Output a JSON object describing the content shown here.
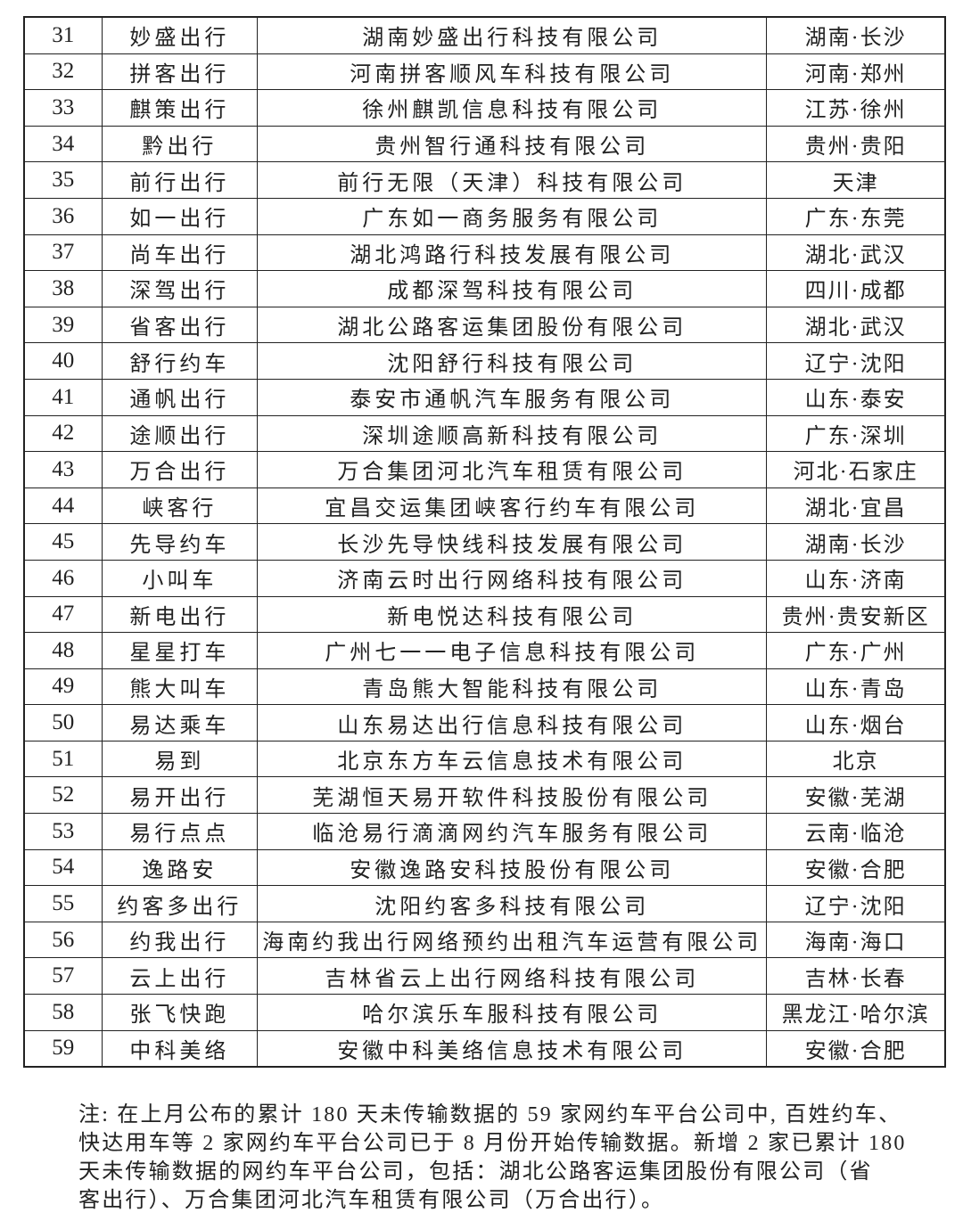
{
  "rows": [
    {
      "no": "31",
      "name": "妙盛出行",
      "company": "湖南妙盛出行科技有限公司",
      "location": "湖南·长沙"
    },
    {
      "no": "32",
      "name": "拼客出行",
      "company": "河南拼客顺风车科技有限公司",
      "location": "河南·郑州"
    },
    {
      "no": "33",
      "name": "麒策出行",
      "company": "徐州麒凯信息科技有限公司",
      "location": "江苏·徐州"
    },
    {
      "no": "34",
      "name": "黔出行",
      "company": "贵州智行通科技有限公司",
      "location": "贵州·贵阳"
    },
    {
      "no": "35",
      "name": "前行出行",
      "company": "前行无限（天津）科技有限公司",
      "location": "天津"
    },
    {
      "no": "36",
      "name": "如一出行",
      "company": "广东如一商务服务有限公司",
      "location": "广东·东莞"
    },
    {
      "no": "37",
      "name": "尚车出行",
      "company": "湖北鸿路行科技发展有限公司",
      "location": "湖北·武汉"
    },
    {
      "no": "38",
      "name": "深驾出行",
      "company": "成都深驾科技有限公司",
      "location": "四川·成都"
    },
    {
      "no": "39",
      "name": "省客出行",
      "company": "湖北公路客运集团股份有限公司",
      "location": "湖北·武汉"
    },
    {
      "no": "40",
      "name": "舒行约车",
      "company": "沈阳舒行科技有限公司",
      "location": "辽宁·沈阳"
    },
    {
      "no": "41",
      "name": "通帆出行",
      "company": "泰安市通帆汽车服务有限公司",
      "location": "山东·泰安"
    },
    {
      "no": "42",
      "name": "途顺出行",
      "company": "深圳途顺高新科技有限公司",
      "location": "广东·深圳"
    },
    {
      "no": "43",
      "name": "万合出行",
      "company": "万合集团河北汽车租赁有限公司",
      "location": "河北·石家庄"
    },
    {
      "no": "44",
      "name": "峡客行",
      "company": "宜昌交运集团峡客行约车有限公司",
      "location": "湖北·宜昌"
    },
    {
      "no": "45",
      "name": "先导约车",
      "company": "长沙先导快线科技发展有限公司",
      "location": "湖南·长沙"
    },
    {
      "no": "46",
      "name": "小叫车",
      "company": "济南云时出行网络科技有限公司",
      "location": "山东·济南"
    },
    {
      "no": "47",
      "name": "新电出行",
      "company": "新电悦达科技有限公司",
      "location": "贵州·贵安新区"
    },
    {
      "no": "48",
      "name": "星星打车",
      "company": "广州七一一电子信息科技有限公司",
      "location": "广东·广州"
    },
    {
      "no": "49",
      "name": "熊大叫车",
      "company": "青岛熊大智能科技有限公司",
      "location": "山东·青岛"
    },
    {
      "no": "50",
      "name": "易达乘车",
      "company": "山东易达出行信息科技有限公司",
      "location": "山东·烟台"
    },
    {
      "no": "51",
      "name": "易到",
      "company": "北京东方车云信息技术有限公司",
      "location": "北京"
    },
    {
      "no": "52",
      "name": "易开出行",
      "company": "芜湖恒天易开软件科技股份有限公司",
      "location": "安徽·芜湖"
    },
    {
      "no": "53",
      "name": "易行点点",
      "company": "临沧易行滴滴网约汽车服务有限公司",
      "location": "云南·临沧"
    },
    {
      "no": "54",
      "name": "逸路安",
      "company": "安徽逸路安科技股份有限公司",
      "location": "安徽·合肥"
    },
    {
      "no": "55",
      "name": "约客多出行",
      "company": "沈阳约客多科技有限公司",
      "location": "辽宁·沈阳"
    },
    {
      "no": "56",
      "name": "约我出行",
      "company": "海南约我出行网络预约出租汽车运营有限公司",
      "location": "海南·海口"
    },
    {
      "no": "57",
      "name": "云上出行",
      "company": "吉林省云上出行网络科技有限公司",
      "location": "吉林·长春"
    },
    {
      "no": "58",
      "name": "张飞快跑",
      "company": "哈尔滨乐车服科技有限公司",
      "location": "黑龙江·哈尔滨"
    },
    {
      "no": "59",
      "name": "中科美络",
      "company": "安徽中科美络信息技术有限公司",
      "location": "安徽·合肥"
    }
  ],
  "note": {
    "lines": [
      "注: 在上月公布的累计 180 天未传输数据的 59 家网约车平台公司中, 百姓约车、",
      "快达用车等 2 家网约车平台公司已于 8 月份开始传输数据。新增 2 家已累计 180",
      "天未传输数据的网约车平台公司，包括：湖北公路客运集团股份有限公司（省",
      "客出行）、万合集团河北汽车租赁有限公司（万合出行）。"
    ]
  }
}
